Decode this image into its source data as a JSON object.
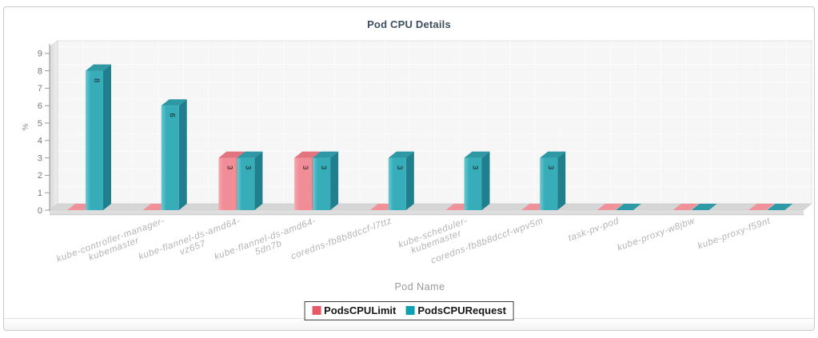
{
  "chart_data": {
    "type": "bar",
    "title": "Pod CPU Details",
    "xlabel": "Pod Name",
    "ylabel": "%",
    "ylim": [
      0,
      9
    ],
    "yticks": [
      0,
      1,
      2,
      3,
      4,
      5,
      6,
      7,
      8,
      9
    ],
    "grid": true,
    "legend_position": "bottom-center",
    "bar_value_labels": "rotated-90",
    "style": "pseudo-3d-columns",
    "categories": [
      "",
      "kube-controller-manager-\nkubemaster",
      "kube-flannel-ds-amd64-\nvz657",
      "kube-flannel-ds-amd64-\n5dn7b",
      "coredns-fb8b8dccf-l7ttz",
      "kube-scheduler-\nkubemaster",
      "coredns-fb8b8dccf-wpv5m",
      "task-pv-pod",
      "kube-proxy-w8jbw",
      "kube-proxy-f59nt"
    ],
    "series": [
      {
        "name": "PodsCPULimit",
        "values": [
          0,
          0,
          3,
          3,
          0,
          0,
          0,
          0,
          0,
          0
        ],
        "colors": {
          "front": "#f08d96",
          "front_light": "#f7a8af",
          "top": "#e2747f",
          "side": "#d06a75",
          "slab": "#f0929a",
          "legend": "#e55a66"
        }
      },
      {
        "name": "PodsCPURequest",
        "values": [
          8,
          6,
          3,
          3,
          3,
          3,
          3,
          0,
          0,
          0
        ],
        "colors": {
          "front": "#37adba",
          "front_light": "#6cc9d1",
          "top": "#2e98a5",
          "side": "#1f7f8d",
          "slab": "#2e9aa7",
          "legend": "#0da0b0"
        }
      }
    ]
  }
}
